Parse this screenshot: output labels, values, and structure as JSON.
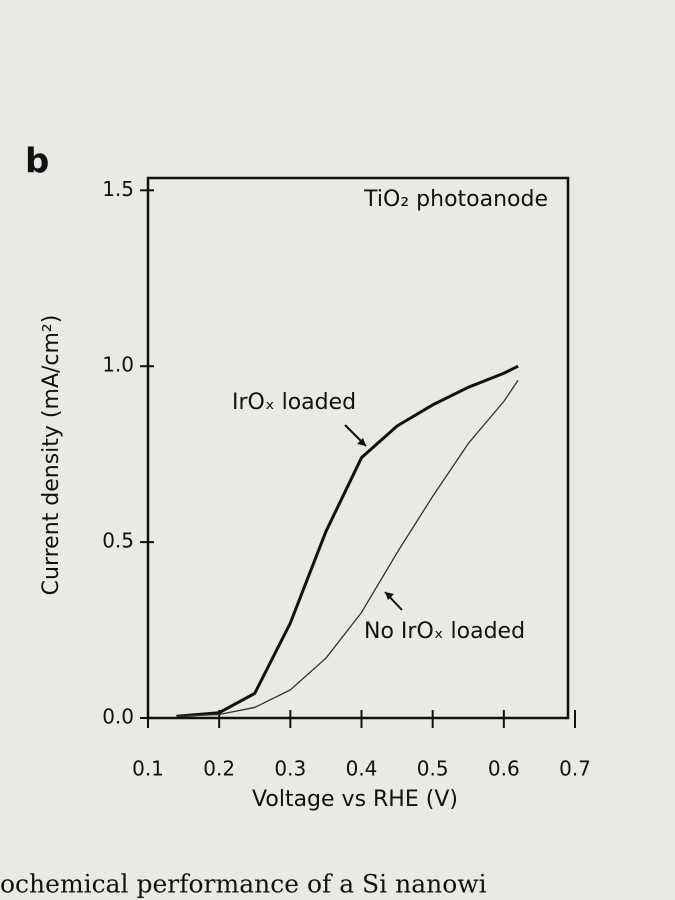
{
  "panel_label": "b",
  "caption": "ochemical performance of a Si nanowi",
  "chart_data": {
    "type": "line",
    "title": "TiO₂ photoanode",
    "x_label": "Voltage vs RHE (V)",
    "y_label": "Current density (mA/cm²)",
    "x": [
      0.14,
      0.2,
      0.25,
      0.3,
      0.35,
      0.4,
      0.45,
      0.5,
      0.55,
      0.6,
      0.62
    ],
    "series": [
      {
        "name": "IrOₓ loaded",
        "color": "#111111",
        "width": 3,
        "values": [
          0.005,
          0.015,
          0.07,
          0.27,
          0.53,
          0.74,
          0.83,
          0.89,
          0.94,
          0.98,
          1.0
        ]
      },
      {
        "name": "No IrOₓ loaded",
        "color": "#333333",
        "width": 1.3,
        "values": [
          0.005,
          0.01,
          0.03,
          0.08,
          0.17,
          0.3,
          0.47,
          0.63,
          0.78,
          0.9,
          0.96
        ]
      }
    ],
    "xlim": [
      0.1,
      0.7
    ],
    "ylim": [
      0,
      1.535
    ],
    "xticks": [
      0.1,
      0.2,
      0.3,
      0.4,
      0.5,
      0.6,
      0.7
    ],
    "yticks": [
      {
        "value": 0,
        "label": "0.0"
      },
      0.5,
      {
        "value": 1,
        "label": "1.0"
      },
      1.5
    ],
    "grid": false
  }
}
